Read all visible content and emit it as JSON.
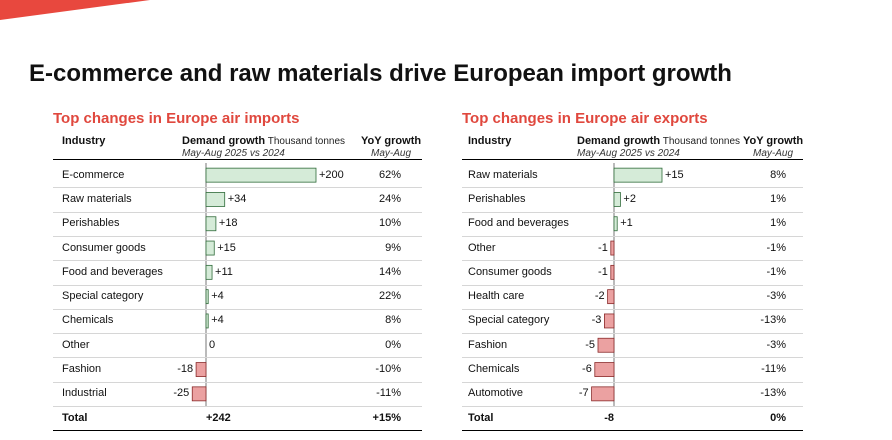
{
  "title": "E-commerce and raw materials drive European import growth",
  "accent_color": "#e8483e",
  "bar_colors": {
    "positive": "#d5ebd8",
    "positive_border": "#2f6b3a",
    "negative": "#eba1a1",
    "negative_border": "#8a2a2a"
  },
  "chart_data": [
    {
      "type": "bar",
      "orientation": "horizontal",
      "title": "Top changes in Europe air imports",
      "columns": {
        "industry": "Industry",
        "demand": "Demand growth",
        "demand_unit": "Thousand tonnes",
        "demand_sub": "May-Aug 2025 vs 2024",
        "yoy": "YoY growth",
        "yoy_sub": "May-Aug"
      },
      "categories": [
        "E-commerce",
        "Raw materials",
        "Perishables",
        "Consumer goods",
        "Food and beverages",
        "Special category",
        "Chemicals",
        "Other",
        "Fashion",
        "Industrial"
      ],
      "value_labels": [
        "+200",
        "+34",
        "+18",
        "+15",
        "+11",
        "+4",
        "+4",
        "0",
        "-18",
        "-25"
      ],
      "values": [
        200,
        34,
        18,
        15,
        11,
        4,
        4,
        0,
        -18,
        -25
      ],
      "yoy": [
        "62%",
        "24%",
        "10%",
        "9%",
        "14%",
        "22%",
        "8%",
        "0%",
        "-10%",
        "-11%"
      ],
      "total": {
        "label": "Total",
        "demand": "+242",
        "yoy": "+15%"
      },
      "xlim": [
        -25,
        200
      ]
    },
    {
      "type": "bar",
      "orientation": "horizontal",
      "title": "Top changes in Europe air exports",
      "columns": {
        "industry": "Industry",
        "demand": "Demand growth",
        "demand_unit": "Thousand tonnes",
        "demand_sub": "May-Aug 2025 vs 2024",
        "yoy": "YoY growth",
        "yoy_sub": "May-Aug"
      },
      "categories": [
        "Raw materials",
        "Perishables",
        "Food and beverages",
        "Other",
        "Consumer goods",
        "Health care",
        "Special category",
        "Fashion",
        "Chemicals",
        "Automotive"
      ],
      "value_labels": [
        "+15",
        "+2",
        "+1",
        "-1",
        "-1",
        "-2",
        "-3",
        "-5",
        "-6",
        "-7"
      ],
      "values": [
        15,
        2,
        1,
        -1,
        -1,
        -2,
        -3,
        -5,
        -6,
        -7
      ],
      "yoy": [
        "8%",
        "1%",
        "1%",
        "-1%",
        "-1%",
        "-3%",
        "-13%",
        "-3%",
        "-11%",
        "-13%"
      ],
      "total": {
        "label": "Total",
        "demand": "-8",
        "yoy": "0%"
      },
      "xlim": [
        -7,
        15
      ]
    }
  ]
}
